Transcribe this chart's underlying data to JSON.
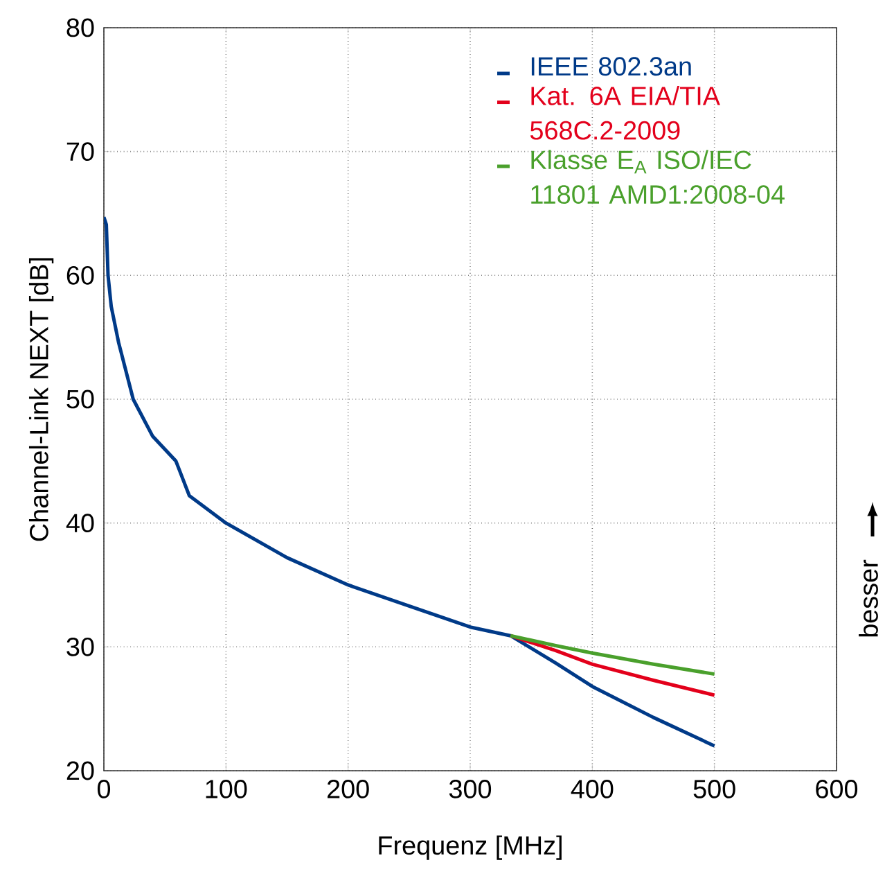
{
  "chart_data": {
    "type": "line",
    "xlabel": "Frequenz [MHz]",
    "ylabel": "Channel-Link NEXT [dB]",
    "xlim": [
      0,
      600
    ],
    "ylim": [
      20,
      80
    ],
    "xticks": [
      0,
      100,
      200,
      300,
      400,
      500,
      600
    ],
    "yticks": [
      20,
      30,
      40,
      50,
      60,
      70,
      80
    ],
    "grid": true,
    "legend": "top right",
    "marker": "none",
    "line_style": "solid",
    "annotations": [
      "besser"
    ],
    "series": [
      {
        "name": "IEEE 802.3an",
        "color": "#003a88",
        "x": [
          0,
          2,
          3.4,
          6,
          12,
          24,
          40,
          59,
          70,
          100,
          150,
          200,
          250,
          300,
          333,
          370,
          400,
          450,
          500
        ],
        "values": [
          64.7,
          64.1,
          60,
          57.5,
          54.6,
          50,
          47,
          45,
          42.2,
          40,
          37.2,
          35,
          33.3,
          31.6,
          30.9,
          28.7,
          26.8,
          24.3,
          22
        ]
      },
      {
        "name": "Kat. 6A EIA/TIA 568C.2-2009",
        "color": "#e3001b",
        "x": [
          333,
          370,
          400,
          450,
          500
        ],
        "values": [
          30.9,
          29.7,
          28.6,
          27.3,
          26.1
        ]
      },
      {
        "name": "Klasse E$_{A}$ ISO/IEC 11801 AMD1:2008-04",
        "color": "#4aa02c",
        "x": [
          333,
          370,
          400,
          450,
          500
        ],
        "values": [
          30.9,
          30.1,
          29.5,
          28.6,
          27.8
        ]
      }
    ]
  }
}
